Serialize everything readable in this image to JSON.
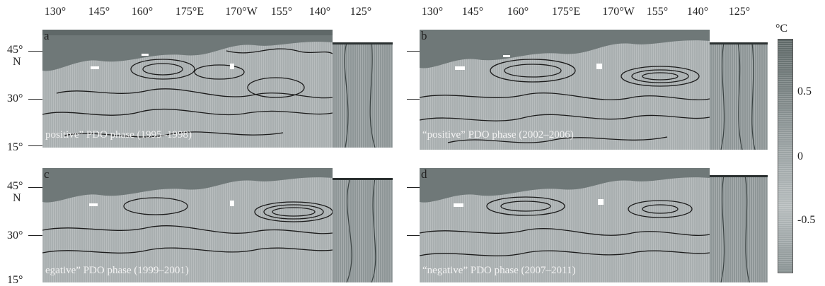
{
  "longitude_labels_left": [
    "130°",
    "145°",
    "160°",
    "175°E",
    "170°W",
    "155°",
    "140°",
    "125°"
  ],
  "longitude_labels_right": [
    "130°",
    "145°",
    "160°",
    "175°E",
    "170°W",
    "155°",
    "140°",
    "125°"
  ],
  "latitude_labels": {
    "top_row": {
      "lat45": "45°",
      "north": "N",
      "lat30": "30°",
      "lat15": "15°"
    },
    "bottom_row": {
      "lat45": "45°",
      "north": "N",
      "lat30": "30°",
      "lat15": "15°"
    }
  },
  "panels": [
    {
      "letter": "a",
      "caption": "positive” PDO phase (1995–1998)"
    },
    {
      "letter": "b",
      "caption": "“positive” PDO phase (2002–2006)"
    },
    {
      "letter": "c",
      "caption": "egative” PDO phase (1999–2001)"
    },
    {
      "letter": "d",
      "caption": "“negative” PDO phase (2007–2011)"
    }
  ],
  "colorbar": {
    "unit": "°C",
    "ticks": [
      "0.5",
      "0",
      "-0.5"
    ],
    "colors": {
      "high": "#5e6867",
      "mid": "#b6bcbd",
      "low": "#8a9394"
    }
  },
  "colors": {
    "ocean": "#a9afb0",
    "land": "#6f7878",
    "contour": "#1c1c1c"
  }
}
